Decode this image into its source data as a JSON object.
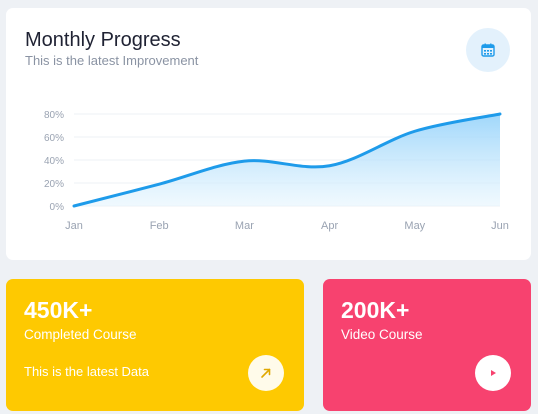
{
  "progress_card": {
    "title": "Monthly Progress",
    "subtitle": "This is the latest Improvement",
    "calendar_icon": "calendar-icon"
  },
  "chart_data": {
    "type": "area",
    "categories": [
      "Jan",
      "Feb",
      "Mar",
      "Apr",
      "May",
      "Jun"
    ],
    "series": [
      {
        "values": [
          0,
          19,
          39,
          35,
          65,
          80
        ]
      }
    ],
    "yticks": [
      "0%",
      "20%",
      "40%",
      "60%",
      "80%"
    ],
    "ylim": [
      0,
      80
    ],
    "grid": true,
    "line_color": "#1e9bea",
    "fill_color": "#bfe3fb"
  },
  "stats": [
    {
      "value": "450K+",
      "label": "Completed Course",
      "note": "This is the latest Data",
      "icon": "arrow-up-right-icon",
      "color": "#fec901"
    },
    {
      "value": "200K+",
      "label": "Video Course",
      "icon": "play-icon",
      "color": "#f7426f"
    }
  ]
}
